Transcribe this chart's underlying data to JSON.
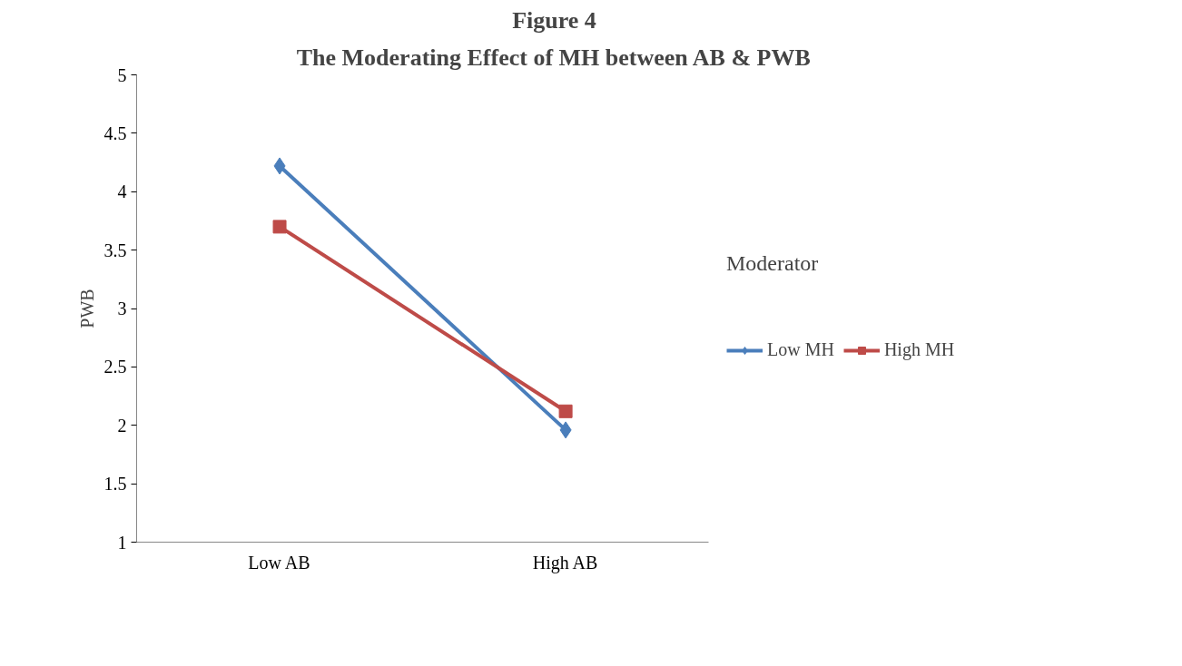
{
  "chart_data": {
    "type": "line",
    "title": "Figure 4",
    "subtitle": "The Moderating Effect of MH between AB & PWB",
    "ylabel": "PWB",
    "legend_title": "Moderator",
    "categories": [
      "Low AB",
      "High AB"
    ],
    "series": [
      {
        "name": "Low MH",
        "color": "#4a7ebb",
        "values": [
          4.22,
          1.96
        ],
        "marker": "diamond"
      },
      {
        "name": "High MH",
        "color": "#be4b48",
        "values": [
          3.7,
          2.12
        ],
        "marker": "square"
      }
    ],
    "ylim": [
      1,
      5
    ],
    "yticks": [
      1,
      1.5,
      2,
      2.5,
      3,
      3.5,
      4,
      4.5,
      5
    ],
    "grid": false,
    "legend": "right",
    "line_style": "solid"
  }
}
